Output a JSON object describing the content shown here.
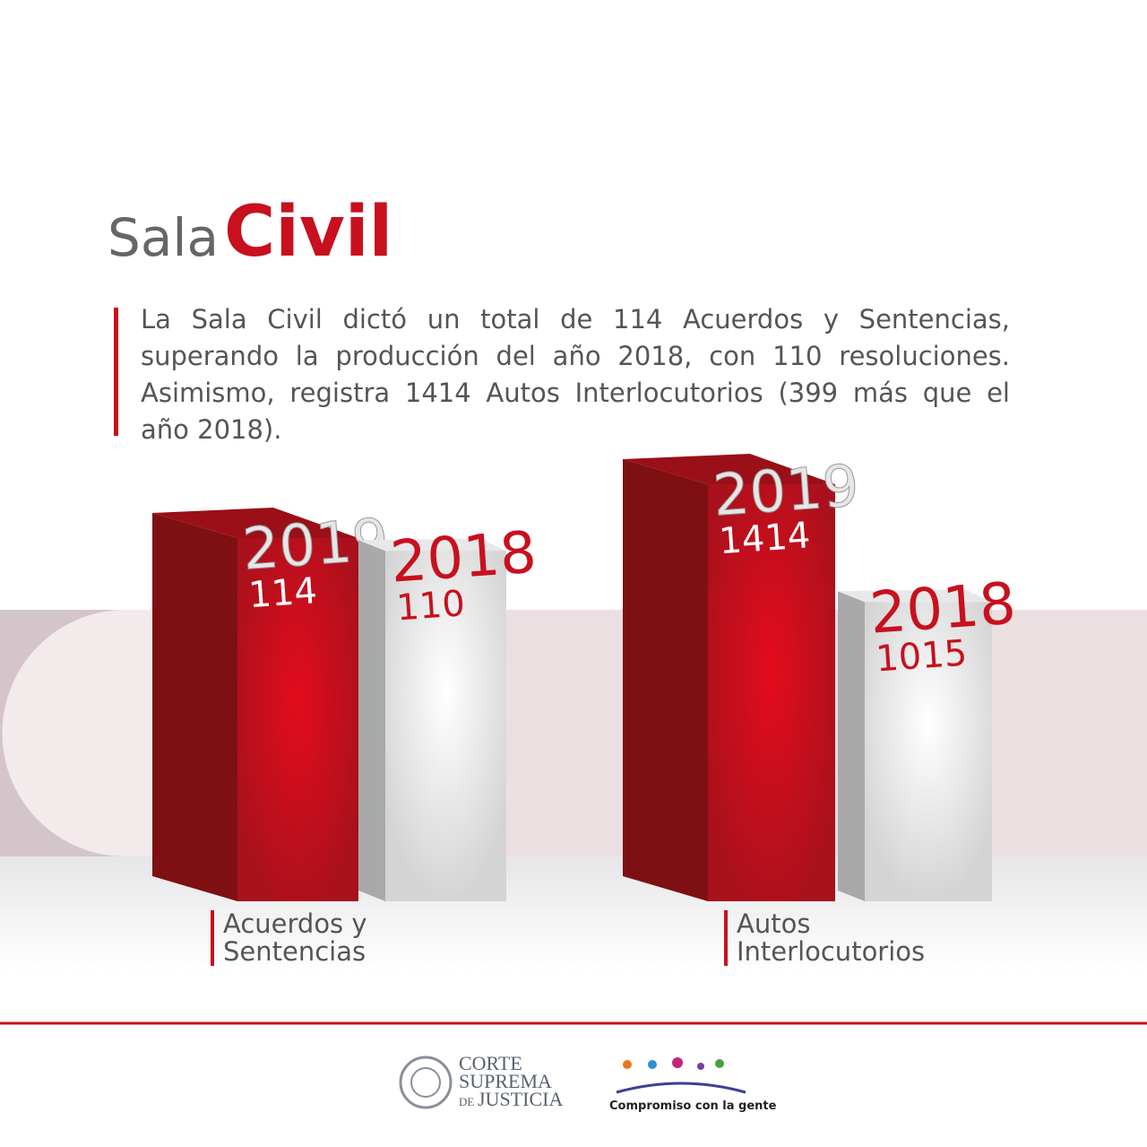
{
  "chart_data": {
    "type": "bar3d",
    "title": [
      "Sala",
      "Civil"
    ],
    "description": "La Sala Civil dictó un total de 114 Acuerdos y Sentencias, superando la producción del año 2018, con 110 resoluciones. Asimismo, registra 1414 Autos Interlocutorios (399 más que el año 2018).",
    "categories": [
      "Acuerdos y Sentencias",
      "Autos Interlocutorios"
    ],
    "series": [
      {
        "name": "2019",
        "color": "#c8101e",
        "values": [
          114,
          1414
        ]
      },
      {
        "name": "2018",
        "color": "#d6d6d6",
        "values": [
          110,
          1015
        ]
      }
    ]
  },
  "footer": {
    "institution": [
      "CORTE",
      "SUPREMA",
      "DE",
      "JUSTICIA"
    ],
    "slogan": "Compromiso con la gente"
  }
}
